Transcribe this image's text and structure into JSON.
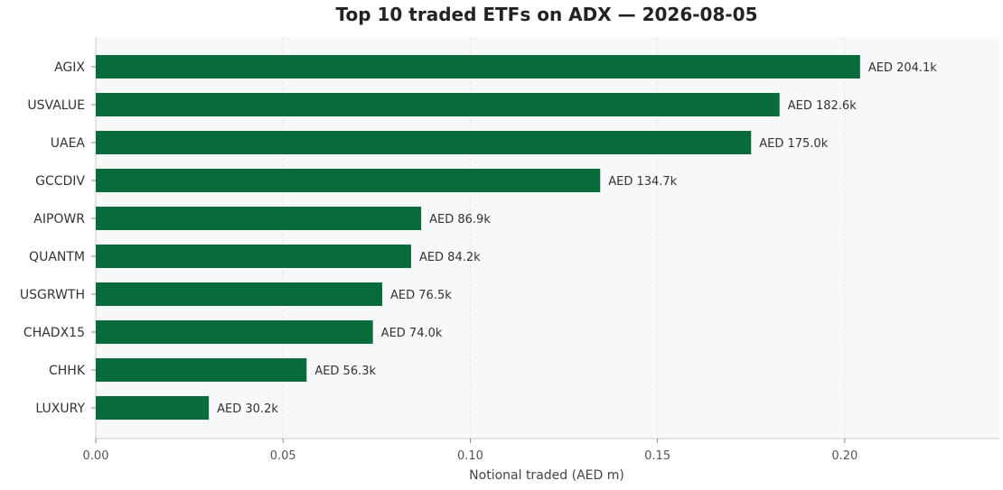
{
  "chart_data": {
    "type": "bar",
    "orientation": "horizontal",
    "title": "Top 10 traded ETFs on ADX — 2026-08-05",
    "xlabel": "Notional traded (AED m)",
    "ylabel": "",
    "categories": [
      "AGIX",
      "USVALUE",
      "UAEA",
      "GCCDIV",
      "AIPOWR",
      "QUANTM",
      "USGRWTH",
      "CHADX15",
      "CHHK",
      "LUXURY"
    ],
    "values": [
      0.2041,
      0.1826,
      0.175,
      0.1347,
      0.0869,
      0.0842,
      0.0765,
      0.074,
      0.0563,
      0.0302
    ],
    "value_labels": [
      "AED 204.1k",
      "AED 182.6k",
      "AED 175.0k",
      "AED 134.7k",
      "AED 86.9k",
      "AED 84.2k",
      "AED 76.5k",
      "AED 74.0k",
      "AED 56.3k",
      "AED 30.2k"
    ],
    "xlim": [
      0,
      0.2413
    ],
    "xticks": [
      0.0,
      0.05,
      0.1,
      0.15,
      0.2
    ],
    "xtick_labels": [
      "0.00",
      "0.05",
      "0.10",
      "0.15",
      "0.20"
    ],
    "grid": "vertical-dashed",
    "bar_color": "#0a6b3a",
    "plot_background": "#f7f8fa",
    "grid_color": "#e3e5e8",
    "axis_color": "#cccccc"
  }
}
